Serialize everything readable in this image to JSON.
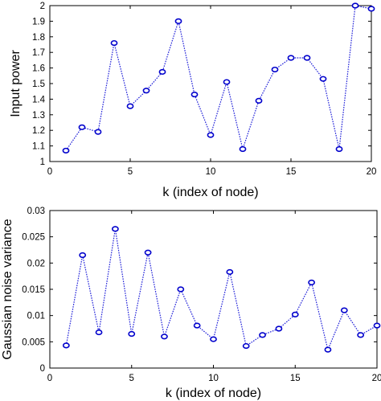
{
  "chart_data": [
    {
      "type": "line",
      "title": "",
      "xlabel": "k (index of node)",
      "ylabel": "Input power",
      "xlim": [
        0,
        20
      ],
      "ylim": [
        1,
        2
      ],
      "xticks": [
        "0",
        "5",
        "10",
        "15",
        "20"
      ],
      "yticks": [
        "1",
        "1.1",
        "1.2",
        "1.3",
        "1.4",
        "1.5",
        "1.6",
        "1.7",
        "1.8",
        "1.9",
        "2"
      ],
      "grid": false,
      "series": [
        {
          "x": [
            1,
            2,
            3,
            4,
            5,
            6,
            7,
            8,
            9,
            10,
            11,
            12,
            13,
            14,
            15,
            16,
            17,
            18,
            19,
            20
          ],
          "values": [
            1.07,
            1.22,
            1.19,
            1.76,
            1.355,
            1.455,
            1.575,
            1.9,
            1.43,
            1.17,
            1.51,
            1.08,
            1.39,
            1.59,
            1.665,
            1.665,
            1.53,
            1.08,
            2.0,
            1.98
          ]
        }
      ],
      "color": "#0000cc"
    },
    {
      "type": "line",
      "title": "",
      "xlabel": "k (index of node)",
      "ylabel": "Gaussian noise variance",
      "xlim": [
        0,
        20
      ],
      "ylim": [
        0,
        0.03
      ],
      "xticks": [
        "0",
        "5",
        "10",
        "15",
        "20"
      ],
      "yticks": [
        "0",
        "0.005",
        "0.01",
        "0.015",
        "0.02",
        "0.025",
        "0.03"
      ],
      "grid": false,
      "series": [
        {
          "x": [
            1,
            2,
            3,
            4,
            5,
            6,
            7,
            8,
            9,
            10,
            11,
            12,
            13,
            14,
            15,
            16,
            17,
            18,
            19,
            20
          ],
          "values": [
            0.0043,
            0.0215,
            0.0068,
            0.0265,
            0.0065,
            0.022,
            0.006,
            0.015,
            0.0081,
            0.0055,
            0.0183,
            0.0042,
            0.0063,
            0.0075,
            0.0102,
            0.0163,
            0.0035,
            0.011,
            0.0063,
            0.0081
          ]
        }
      ],
      "color": "#0000cc"
    }
  ]
}
